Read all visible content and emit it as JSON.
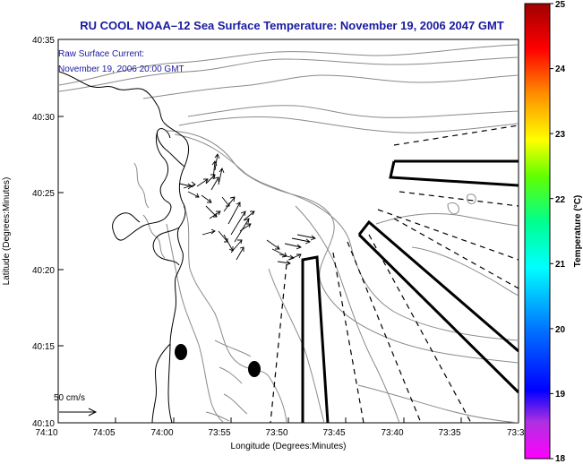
{
  "title": "RU COOL  NOAA–12  Sea Surface Temperature:  November 19, 2006 2047 GMT",
  "inset": {
    "line1": "Raw Surface Current:",
    "line2": "November 19, 2006 20:00 GMT"
  },
  "scale_label": "50 cm/s",
  "axes": {
    "xlabel": "Longitude (Degrees:Minutes)",
    "ylabel": "Latitude (Degrees:Minutes)",
    "xticks": [
      "74:10",
      "74:05",
      "74:00",
      "73:55",
      "73:50",
      "73:45",
      "73:40",
      "73:35",
      "73:3"
    ],
    "yticks": [
      "40:35",
      "40:30",
      "40:25",
      "40:20",
      "40:15",
      "40:10"
    ]
  },
  "colorbar": {
    "label": "Temperature (°C)",
    "ticks": [
      "25",
      "24",
      "23",
      "22",
      "21",
      "20",
      "19",
      "18"
    ],
    "range": [
      18,
      25
    ],
    "colors": [
      "#ff00ff",
      "#8a2be2",
      "#0000ff",
      "#0080ff",
      "#00ffff",
      "#00ff80",
      "#80ff00",
      "#ffff00",
      "#ff8000",
      "#ff0000",
      "#b00000"
    ]
  },
  "colors": {
    "title_text": "#1a1aa0",
    "contour": "#888888",
    "coast": "#000000"
  }
}
